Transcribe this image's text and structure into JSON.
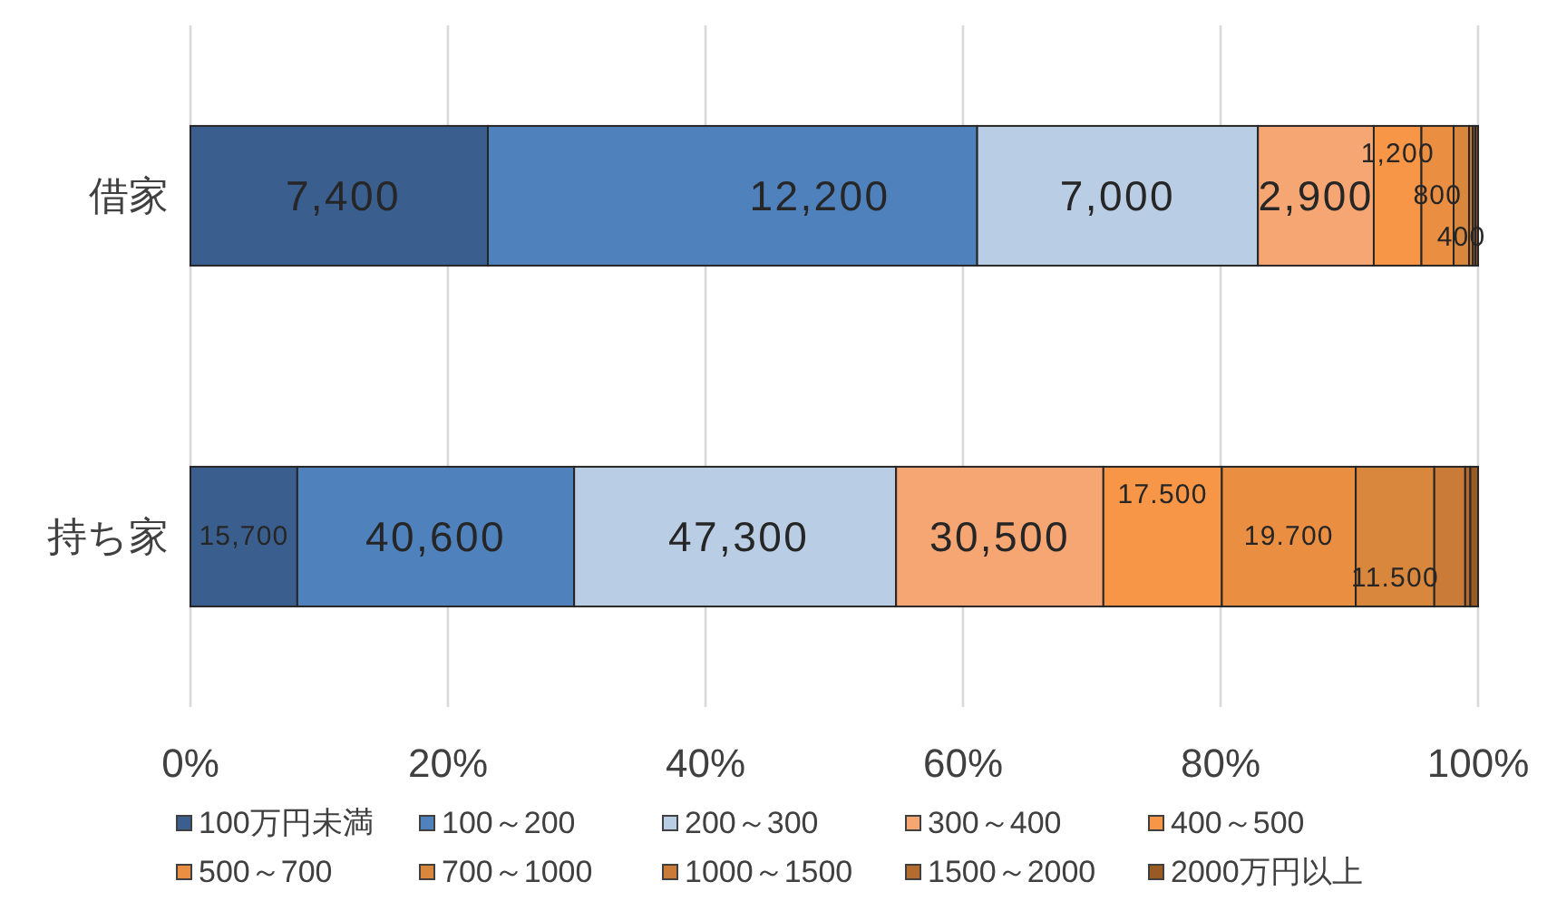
{
  "chart_data": {
    "type": "bar",
    "orientation": "horizontal",
    "stacked": true,
    "categories": [
      "借家",
      "持ち家"
    ],
    "series": [
      {
        "name": "100万円未満",
        "color": "#3a5f8f",
        "values": [
          23.1,
          8.3
        ]
      },
      {
        "name": "100～200",
        "color": "#4f81bd",
        "values": [
          38.0,
          21.5
        ]
      },
      {
        "name": "200～300",
        "color": "#b9cde5",
        "values": [
          21.8,
          25.0
        ]
      },
      {
        "name": "300～400",
        "color": "#f5a672",
        "values": [
          9.0,
          16.1
        ]
      },
      {
        "name": "400～500",
        "color": "#f79646",
        "values": [
          3.7,
          9.2
        ]
      },
      {
        "name": "500～700",
        "color": "#ea8e42",
        "values": [
          2.5,
          10.4
        ]
      },
      {
        "name": "700～1000",
        "color": "#da873e",
        "values": [
          1.2,
          6.1
        ]
      },
      {
        "name": "1000～1500",
        "color": "#c97b37",
        "values": [
          0.3,
          2.4
        ]
      },
      {
        "name": "1500～2000",
        "color": "#b46c2e",
        "values": [
          0.2,
          0.4
        ]
      },
      {
        "name": "2000万円以上",
        "color": "#9a5a24",
        "values": [
          0.2,
          0.6
        ]
      }
    ],
    "annotations": [
      {
        "text": "7,400",
        "x": 23.1,
        "y": "借家"
      },
      {
        "text": "12,200",
        "x": 61.1,
        "y": "借家"
      },
      {
        "text": "7,000",
        "x": 82.9,
        "y": "借家"
      },
      {
        "text": "2,900",
        "x": 91.9,
        "y": "借家"
      },
      {
        "text": "1,200",
        "x": 95.6,
        "y": "借家"
      },
      {
        "text": "800",
        "x": 98.1,
        "y": "借家"
      },
      {
        "text": "400",
        "x": 99.3,
        "y": "借家"
      },
      {
        "text": "15,700",
        "x": 8.3,
        "y": "持ち家"
      },
      {
        "text": "40,600",
        "x": 29.8,
        "y": "持ち家"
      },
      {
        "text": "47,300",
        "x": 54.8,
        "y": "持ち家"
      },
      {
        "text": "30,500",
        "x": 70.9,
        "y": "持ち家"
      },
      {
        "text": "17.500",
        "x": 80.1,
        "y": "持ち家"
      },
      {
        "text": "19.700",
        "x": 90.5,
        "y": "持ち家"
      },
      {
        "text": "11.500",
        "x": 96.6,
        "y": "持ち家"
      }
    ],
    "xlim": [
      0,
      100
    ],
    "xticks": [
      {
        "value": 0,
        "label": "0%"
      },
      {
        "value": 20,
        "label": "20%"
      },
      {
        "value": 40,
        "label": "40%"
      },
      {
        "value": 60,
        "label": "60%"
      },
      {
        "value": 80,
        "label": "80%"
      },
      {
        "value": 100,
        "label": "100%"
      }
    ],
    "grid": "x",
    "legend": "bottom"
  }
}
